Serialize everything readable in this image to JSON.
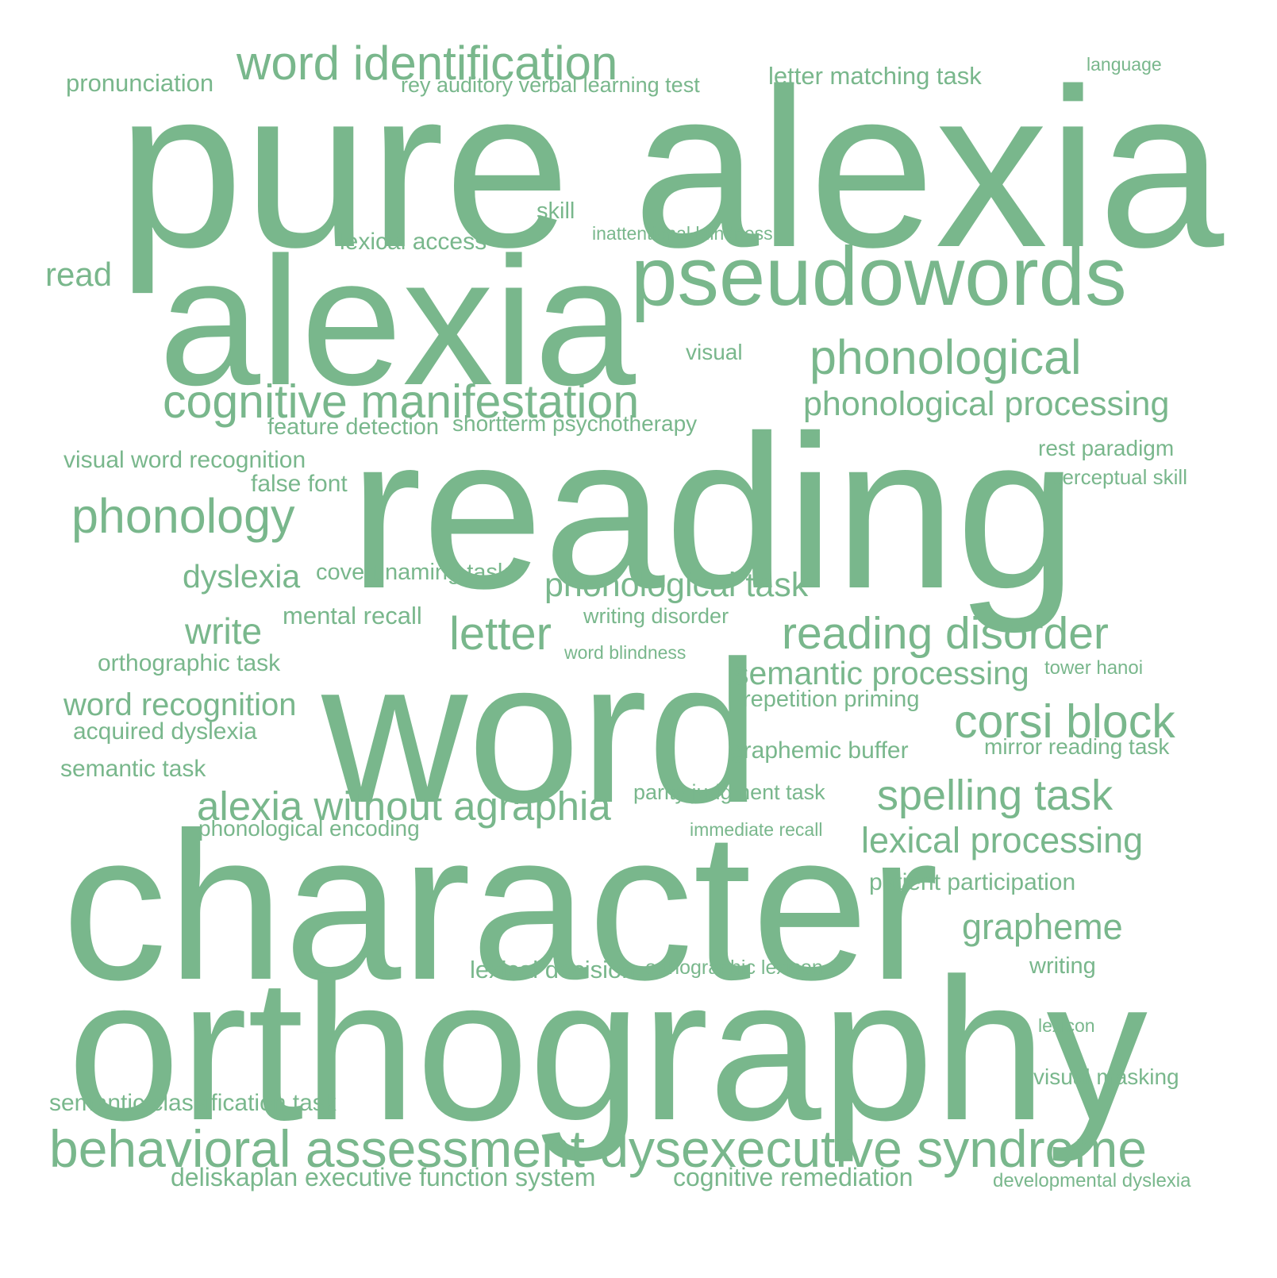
{
  "color": "#79b78c",
  "words": [
    "pure alexia",
    "reading",
    "character",
    "orthography",
    "word",
    "alexia",
    "pseudowords",
    "word identification",
    "behavioral assessment dysexecutive syndrome",
    "cognitive manifestation",
    "phonological",
    "reading disorder",
    "corsi block",
    "phonology",
    "alexia without agraphia",
    "spelling task",
    "letter",
    "phonological processing",
    "lexical processing",
    "grapheme",
    "phonological task",
    "semantic processing",
    "write",
    "word recognition",
    "dyslexia",
    "read",
    "letter matching task",
    "pronunciation",
    "visual word recognition",
    "lexical decision",
    "deliskaplan executive function system",
    "cognitive remediation",
    "semantic classification task",
    "graphemic buffer",
    "covert naming task",
    "mental recall",
    "orthographic task",
    "acquired dyslexia",
    "semantic task",
    "lexical access",
    "false font",
    "feature detection",
    "patient participation",
    "visual masking",
    "rest paradigm",
    "perceptual skill",
    "mirror reading task",
    "repetition priming",
    "phonological encoding",
    "rey auditory verbal learning test",
    "shortterm psychotherapy",
    "writing disorder",
    "writing",
    "visual",
    "skill",
    "parity judgment task",
    "orthographic lexicon",
    "tower hanoi",
    "inattentional blindness",
    "word blindness",
    "immediate recall",
    "developmental dyslexia",
    "language",
    "lexicon"
  ]
}
